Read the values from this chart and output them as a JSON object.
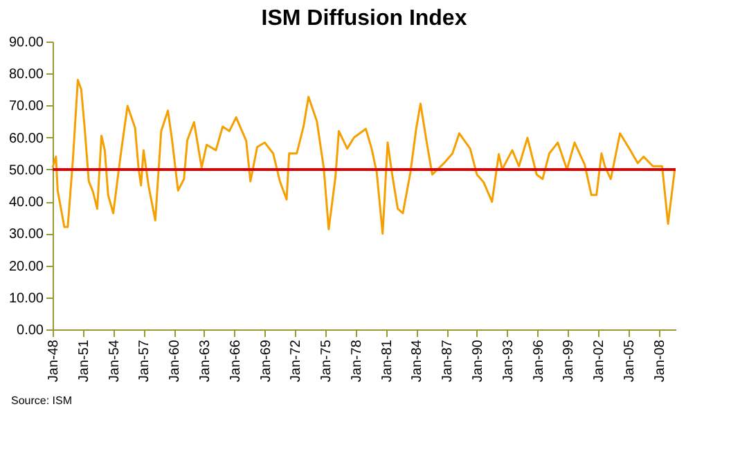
{
  "chart_data": {
    "type": "line",
    "title": "ISM Diffusion Index",
    "x": [
      "1948-01",
      "1948-05",
      "1948-07",
      "1949-03",
      "1949-07",
      "1950-01",
      "1950-07",
      "1950-11",
      "1951-03",
      "1951-08",
      "1952-01",
      "1952-06",
      "1952-11",
      "1953-03",
      "1953-07",
      "1954-01",
      "1954-10",
      "1955-06",
      "1956-03",
      "1956-07",
      "1956-10",
      "1957-01",
      "1957-07",
      "1958-03",
      "1958-10",
      "1959-06",
      "1959-11",
      "1960-06",
      "1961-01",
      "1961-05",
      "1962-01",
      "1962-10",
      "1963-04",
      "1964-03",
      "1964-11",
      "1965-07",
      "1966-03",
      "1967-03",
      "1967-08",
      "1968-04",
      "1969-01",
      "1969-11",
      "1970-07",
      "1971-03",
      "1971-06",
      "1972-03",
      "1972-11",
      "1973-05",
      "1974-03",
      "1974-11",
      "1975-05",
      "1976-01",
      "1976-05",
      "1977-03",
      "1977-11",
      "1979-01",
      "1979-08",
      "1980-02",
      "1980-09",
      "1981-03",
      "1981-08",
      "1982-03",
      "1982-09",
      "1983-06",
      "1984-01",
      "1984-06",
      "1985-01",
      "1985-08",
      "1986-10",
      "1987-08",
      "1988-04",
      "1989-05",
      "1990-01",
      "1990-09",
      "1991-07",
      "1992-03",
      "1992-07",
      "1993-07",
      "1994-03",
      "1995-01",
      "1995-12",
      "1996-07",
      "1997-03",
      "1998-01",
      "1998-12",
      "1999-09",
      "2000-09",
      "2001-05",
      "2001-11",
      "2002-05",
      "2002-09",
      "2003-04",
      "2004-03",
      "2005-02",
      "2005-12",
      "2006-07",
      "2007-06",
      "2008-05",
      "2008-12",
      "2009-08"
    ],
    "series": [
      {
        "color": "#f5a000",
        "values": [
          50.6,
          54,
          43.4,
          32,
          32,
          52.7,
          78,
          75,
          63.4,
          46.3,
          43,
          37.7,
          60.5,
          56,
          42,
          36.3,
          54.8,
          69.9,
          63,
          50.6,
          45,
          56,
          44.9,
          34.1,
          62,
          68.4,
          59,
          43.4,
          47,
          59.1,
          64.8,
          50.6,
          57.7,
          56,
          63.4,
          62,
          66.3,
          59,
          46.3,
          57,
          58.4,
          55,
          46.3,
          40.6,
          55,
          55,
          63.4,
          72.7,
          65,
          50.6,
          31.3,
          47.7,
          62,
          56.5,
          60,
          62.7,
          56.5,
          49,
          29.9,
          58.4,
          49,
          37.7,
          36.3,
          49,
          63,
          70.6,
          59,
          48.4,
          52,
          55,
          61.3,
          56.5,
          48.4,
          46,
          39.9,
          54.8,
          50,
          56,
          51,
          59.9,
          48.4,
          47,
          55,
          58.4,
          50,
          58.4,
          51.5,
          42,
          42,
          55,
          51,
          47,
          61.3,
          56.5,
          52,
          54,
          51,
          51,
          33,
          50
        ]
      }
    ],
    "xlim": [
      "1948-01",
      "2009-09"
    ],
    "xticks": [
      {
        "value": "1948-01",
        "label": "Jan-48"
      },
      {
        "value": "1951-01",
        "label": "Jan-51"
      },
      {
        "value": "1954-01",
        "label": "Jan-54"
      },
      {
        "value": "1957-01",
        "label": "Jan-57"
      },
      {
        "value": "1960-01",
        "label": "Jan-60"
      },
      {
        "value": "1963-01",
        "label": "Jan-63"
      },
      {
        "value": "1966-01",
        "label": "Jan-66"
      },
      {
        "value": "1969-01",
        "label": "Jan-69"
      },
      {
        "value": "1972-01",
        "label": "Jan-72"
      },
      {
        "value": "1975-01",
        "label": "Jan-75"
      },
      {
        "value": "1978-01",
        "label": "Jan-78"
      },
      {
        "value": "1981-01",
        "label": "Jan-81"
      },
      {
        "value": "1984-01",
        "label": "Jan-84"
      },
      {
        "value": "1987-01",
        "label": "Jan-87"
      },
      {
        "value": "1990-01",
        "label": "Jan-90"
      },
      {
        "value": "1993-01",
        "label": "Jan-93"
      },
      {
        "value": "1996-01",
        "label": "Jan-96"
      },
      {
        "value": "1999-01",
        "label": "Jan-99"
      },
      {
        "value": "2002-01",
        "label": "Jan-02"
      },
      {
        "value": "2005-01",
        "label": "Jan-05"
      },
      {
        "value": "2008-01",
        "label": "Jan-08"
      }
    ],
    "ylim": [
      0,
      90
    ],
    "yticks": [
      {
        "value": 0,
        "label": "0.00"
      },
      {
        "value": 10,
        "label": "10.00"
      },
      {
        "value": 20,
        "label": "20.00"
      },
      {
        "value": 30,
        "label": "30.00"
      },
      {
        "value": 40,
        "label": "40.00"
      },
      {
        "value": 50,
        "label": "50.00"
      },
      {
        "value": 60,
        "label": "60.00"
      },
      {
        "value": 70,
        "label": "70.00"
      },
      {
        "value": 80,
        "label": "80.00"
      },
      {
        "value": 90,
        "label": "90.00"
      }
    ],
    "ref_lines": [
      {
        "axis": "y",
        "value": 50,
        "color": "#dd0000"
      }
    ],
    "annotations": [
      "Source: ISM"
    ],
    "grid": false,
    "marker": "none",
    "line_style": "solid"
  }
}
